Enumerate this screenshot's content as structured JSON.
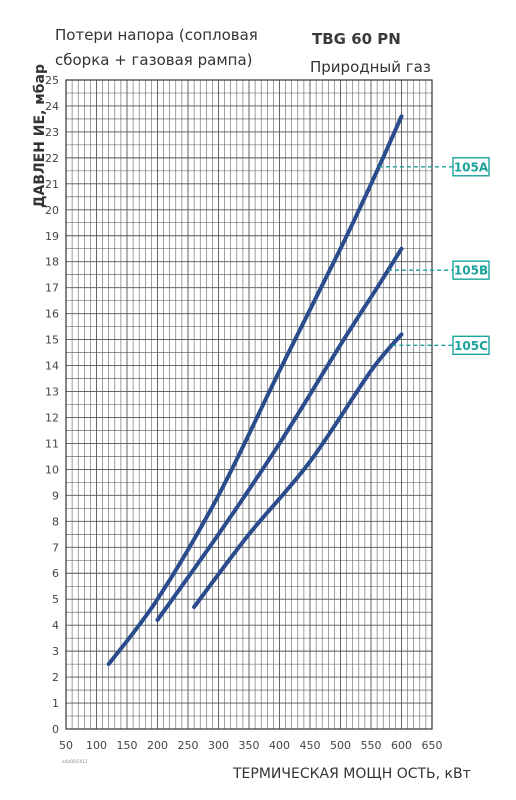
{
  "notes": {
    "header_line1": "Потери напора (сопловая",
    "header_line2": "сборка + газовая рампа)",
    "model": "TBG 60 PN",
    "gas": "Природный газ",
    "footnote": "edizD9/2012"
  },
  "chart_data": {
    "type": "line",
    "xlabel": "ТЕРМИЧЕСКАЯ МОЩН ОСТЬ, кВт",
    "ylabel": "ДАВЛЕН ИЕ, мбар",
    "xlim": [
      50,
      650
    ],
    "ylim": [
      0,
      25
    ],
    "x_ticks": [
      50,
      100,
      150,
      200,
      250,
      300,
      350,
      400,
      450,
      500,
      550,
      600,
      650
    ],
    "y_ticks": [
      0,
      1,
      2,
      3,
      4,
      5,
      6,
      7,
      8,
      9,
      10,
      11,
      12,
      13,
      14,
      15,
      16,
      17,
      18,
      19,
      20,
      21,
      22,
      23,
      24,
      25
    ],
    "grid": true,
    "series": [
      {
        "name": "105A",
        "color": "#2a4b8c",
        "points": [
          [
            120,
            2.5
          ],
          [
            200,
            5.0
          ],
          [
            300,
            9.0
          ],
          [
            400,
            13.8
          ],
          [
            500,
            18.5
          ],
          [
            560,
            21.5
          ],
          [
            600,
            23.6
          ]
        ]
      },
      {
        "name": "105B",
        "color": "#2a4b8c",
        "points": [
          [
            200,
            4.2
          ],
          [
            300,
            7.5
          ],
          [
            400,
            11.0
          ],
          [
            500,
            14.8
          ],
          [
            560,
            17.0
          ],
          [
            600,
            18.5
          ]
        ]
      },
      {
        "name": "105C",
        "color": "#2a4b8c",
        "points": [
          [
            260,
            4.7
          ],
          [
            350,
            7.5
          ],
          [
            450,
            10.3
          ],
          [
            550,
            13.8
          ],
          [
            600,
            15.2
          ]
        ]
      }
    ],
    "markers": [
      {
        "label": "105A",
        "color": "#1aa39a"
      },
      {
        "label": "105B",
        "color": "#1aa39a"
      },
      {
        "label": "105C",
        "color": "#1aa39a"
      }
    ]
  }
}
